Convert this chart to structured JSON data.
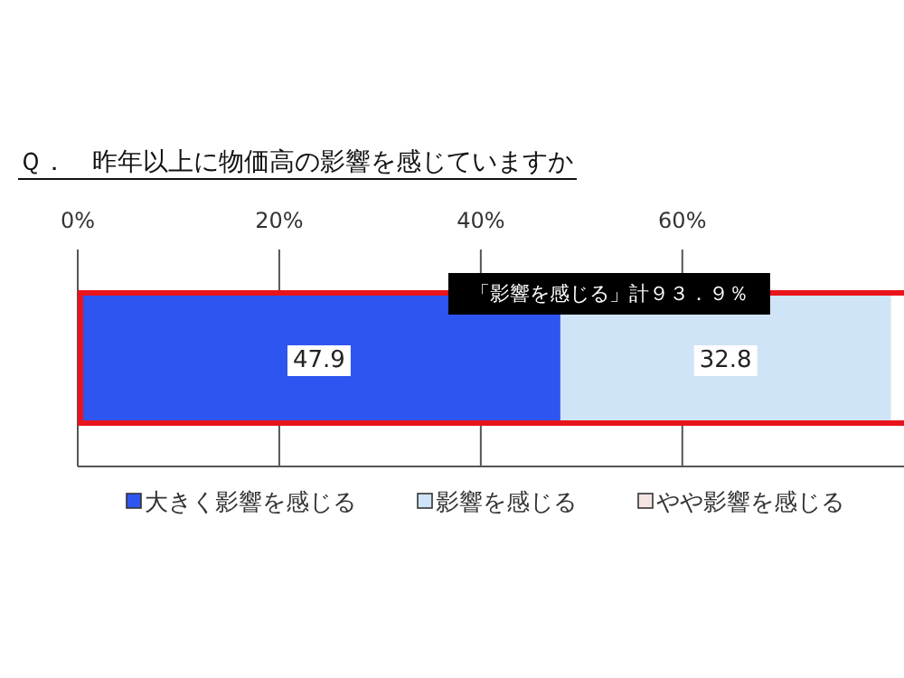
{
  "chart_data": {
    "type": "bar",
    "orientation": "horizontal",
    "stacked": true,
    "title": "Ｑ．　昨年以上に物価高の影響を感じていますか",
    "categories": [
      null
    ],
    "series": [
      {
        "name": "大きく影響を感じる",
        "color": "#2f55f0",
        "values": [
          47.9
        ]
      },
      {
        "name": "影響を感じる",
        "color": "#cfe4f6",
        "values": [
          32.8
        ]
      },
      {
        "name": "やや影響を感じる",
        "color": "#f4e4e4",
        "values": [
          null
        ]
      }
    ],
    "xlim": [
      0,
      82
    ],
    "xticks": [
      {
        "value": 0,
        "label": "0%"
      },
      {
        "value": 20,
        "label": "20%"
      },
      {
        "value": 40,
        "label": "40%"
      },
      {
        "value": 60,
        "label": "60%"
      }
    ],
    "grid": "x",
    "legend": "bottom",
    "data_labels": true,
    "annotations": [
      "「影響を感じる」計９３．９％"
    ]
  }
}
